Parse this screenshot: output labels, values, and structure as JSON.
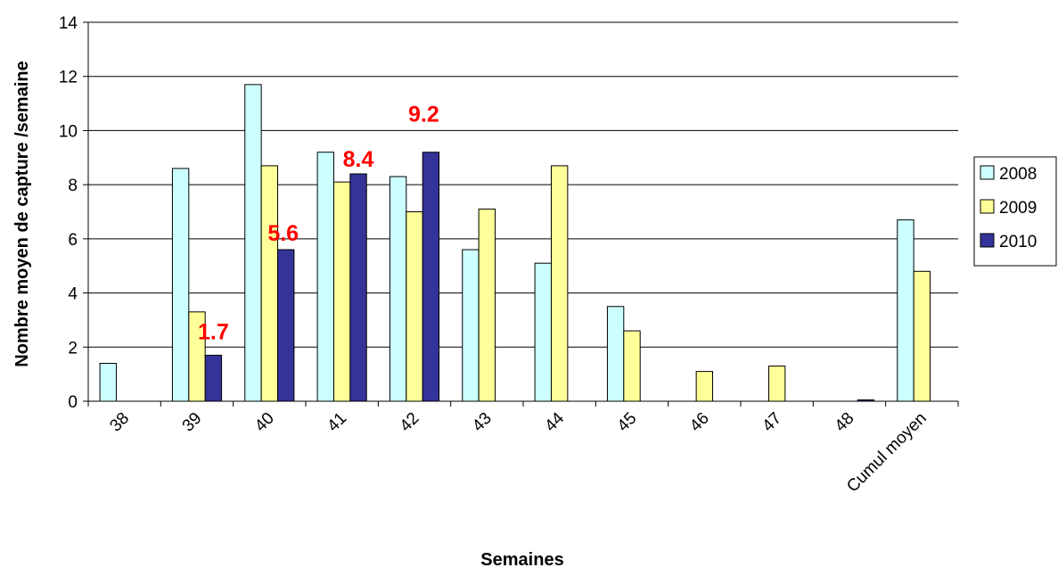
{
  "chart_data": {
    "type": "bar",
    "title": "",
    "xlabel": "Semaines",
    "ylabel": "Nombre moyen de capture /semaine",
    "ylim": [
      0,
      14
    ],
    "ytick_step": 2,
    "grid": true,
    "legend_position": "right",
    "categories": [
      "38",
      "39",
      "40",
      "41",
      "42",
      "43",
      "44",
      "45",
      "46",
      "47",
      "48",
      "Cumul moyen"
    ],
    "series": [
      {
        "name": "2008",
        "color": "#ccffff",
        "values": [
          1.4,
          8.6,
          11.7,
          9.2,
          8.3,
          5.6,
          5.1,
          3.5,
          null,
          null,
          null,
          6.7
        ]
      },
      {
        "name": "2009",
        "color": "#ffff99",
        "values": [
          null,
          3.3,
          8.7,
          8.1,
          7.0,
          7.1,
          8.7,
          2.6,
          1.1,
          1.3,
          null,
          4.8
        ]
      },
      {
        "name": "2010",
        "color": "#333399",
        "values": [
          null,
          1.7,
          5.6,
          8.4,
          9.2,
          null,
          null,
          null,
          null,
          null,
          0.05,
          null
        ]
      }
    ],
    "data_labels": [
      {
        "category": "39",
        "text": "1.7",
        "color": "#ff0000"
      },
      {
        "category": "40",
        "text": "5.6",
        "color": "#ff0000"
      },
      {
        "category": "41",
        "text": "8.4",
        "color": "#ff0000"
      },
      {
        "category": "42",
        "text": "9.2",
        "color": "#ff0000"
      }
    ]
  }
}
